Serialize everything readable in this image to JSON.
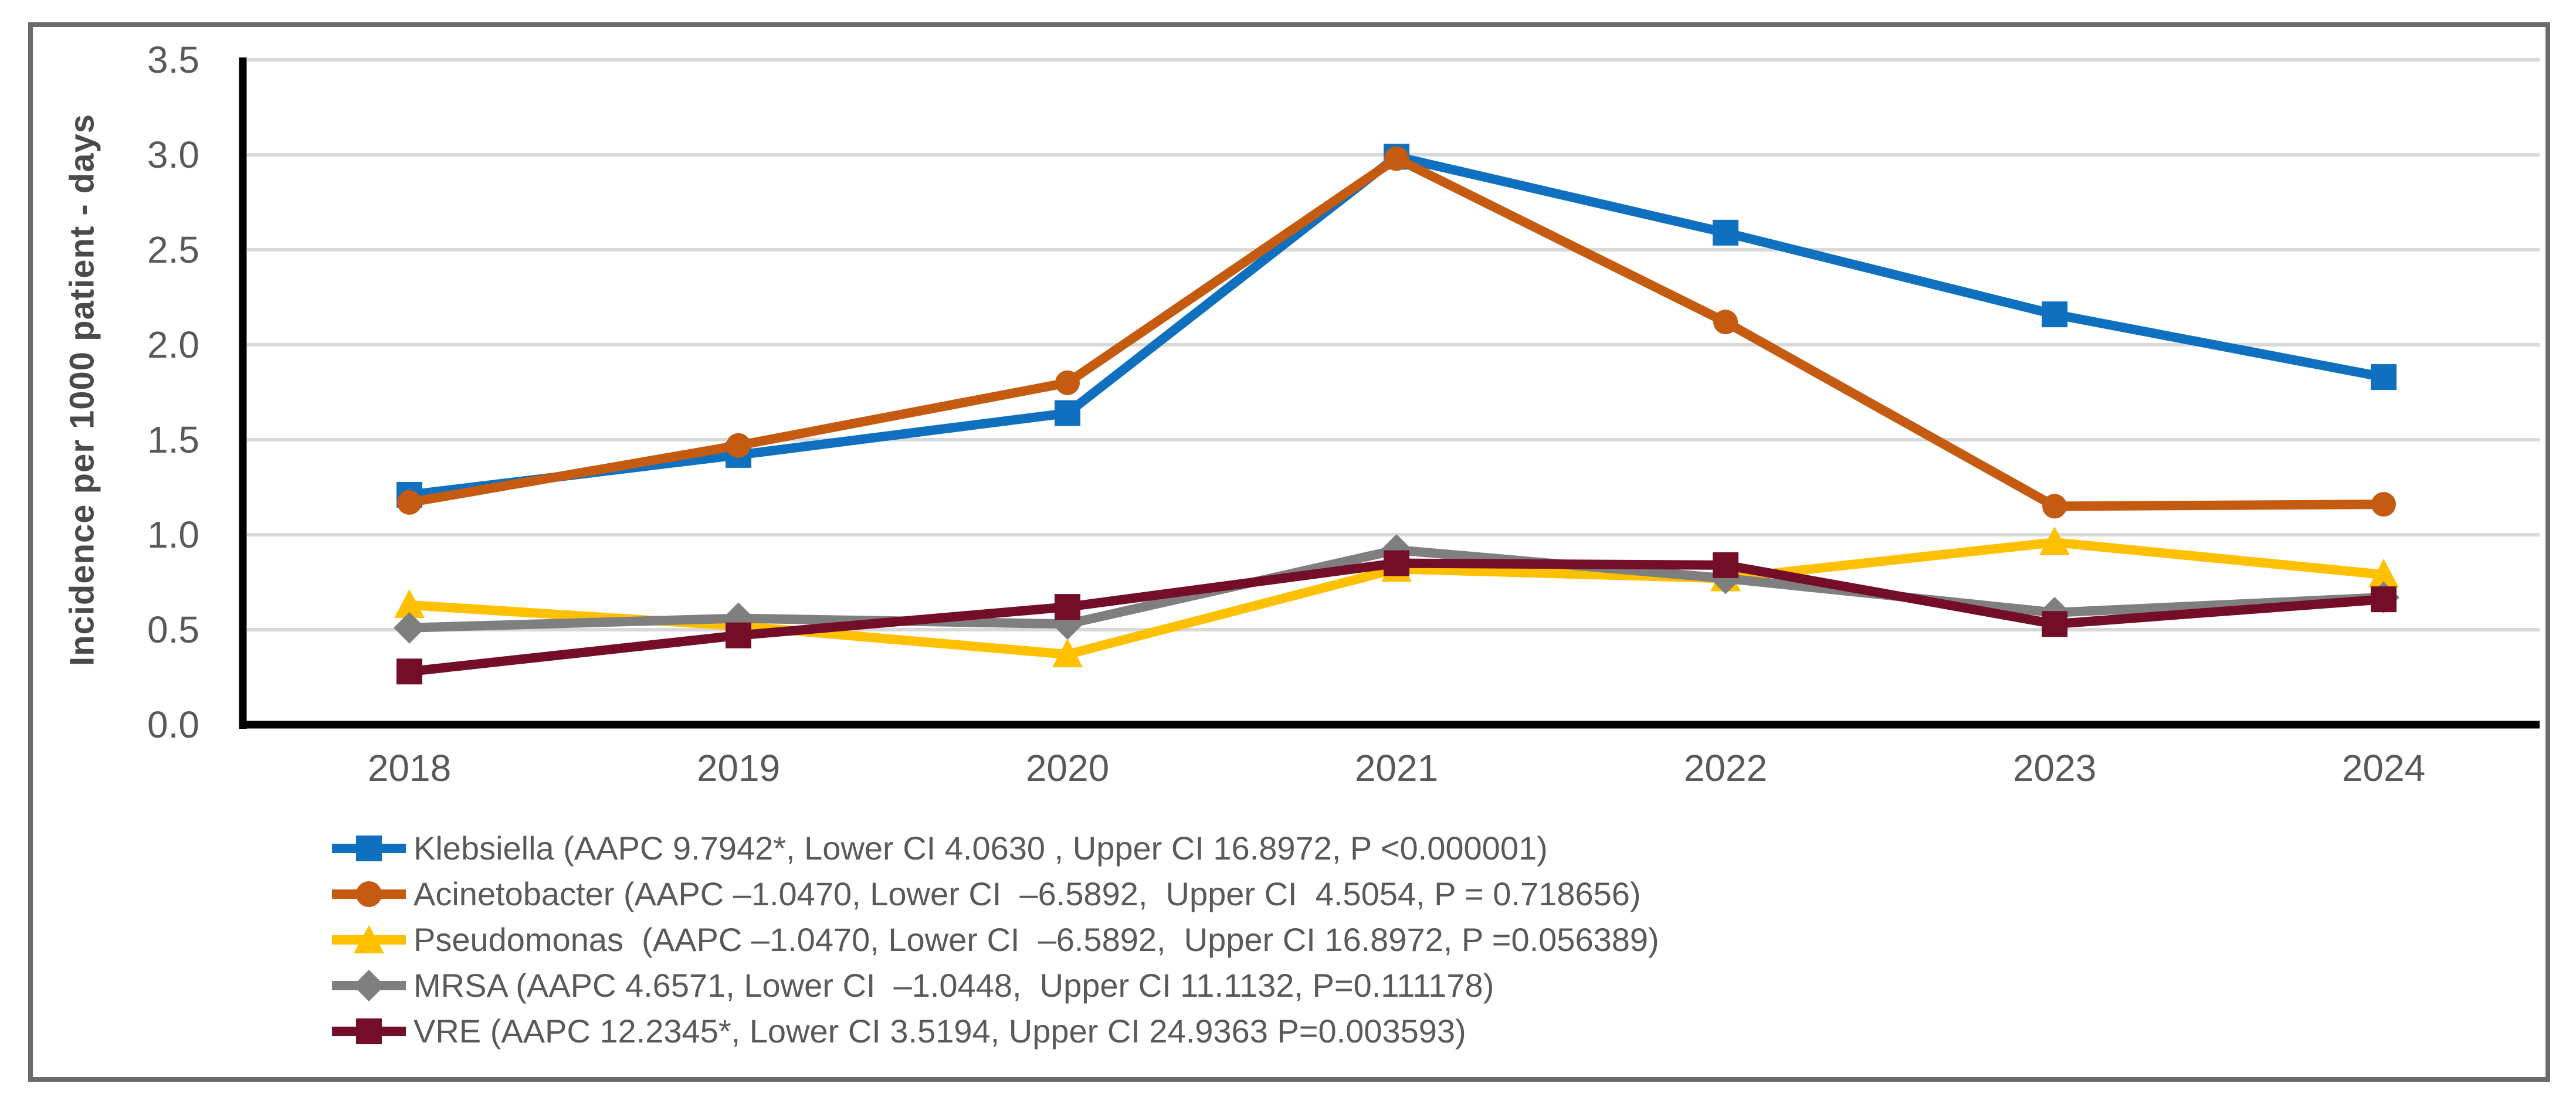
{
  "frame": {
    "background": "#FFFFFF",
    "border_color": "#6b6b6b"
  },
  "chart_data": {
    "type": "line",
    "title": "",
    "xlabel": "",
    "ylabel": "Incidence per 1000 patient - days",
    "ylim": [
      0.0,
      3.5
    ],
    "ytick_step": 0.5,
    "yticks": [
      0.0,
      0.5,
      1.0,
      1.5,
      2.0,
      2.5,
      3.0,
      3.5
    ],
    "categories": [
      "2018",
      "2019",
      "2020",
      "2021",
      "2022",
      "2023",
      "2024"
    ],
    "grid": "horizontal",
    "legend_position": "bottom-left",
    "axis_color": "#000000",
    "gridline_color": "#d9d9d9",
    "tick_label_color": "#595959",
    "series": [
      {
        "name": "Klebsiella",
        "marker": "square",
        "color": "#0e70be",
        "values": [
          1.21,
          1.42,
          1.64,
          2.99,
          2.59,
          2.16,
          1.83
        ],
        "legend": "Klebsiella (AAPC 9.7942*, Lower CI 4.0630 , Upper CI 16.8972, P <0.000001)"
      },
      {
        "name": "Acinetobacter",
        "marker": "circle",
        "color": "#c55a11",
        "values": [
          1.17,
          1.47,
          1.8,
          2.98,
          2.12,
          1.15,
          1.16
        ],
        "legend": "Acinetobacter (AAPC –1.0470, Lower CI  –6.5892,  Upper CI  4.5054, P = 0.718656)"
      },
      {
        "name": "Pseudomonas",
        "marker": "triangle",
        "color": "#ffc000",
        "values": [
          0.63,
          0.52,
          0.37,
          0.82,
          0.77,
          0.96,
          0.79
        ],
        "legend": "Pseudomonas  (AAPC –1.0470, Lower CI  –6.5892,  Upper CI 16.8972, P =0.056389)"
      },
      {
        "name": "MRSA",
        "marker": "diamond",
        "color": "#7f7f7f",
        "values": [
          0.51,
          0.56,
          0.53,
          0.92,
          0.77,
          0.59,
          0.67
        ],
        "legend": "MRSA (AAPC 4.6571, Lower CI  –1.0448,  Upper CI 11.1132, P=0.111178)"
      },
      {
        "name": "VRE",
        "marker": "square",
        "color": "#730d28",
        "values": [
          0.28,
          0.47,
          0.62,
          0.85,
          0.84,
          0.53,
          0.66
        ],
        "legend": "VRE (AAPC 12.2345*, Lower CI 3.5194, Upper CI 24.9363 P=0.003593)"
      }
    ]
  }
}
